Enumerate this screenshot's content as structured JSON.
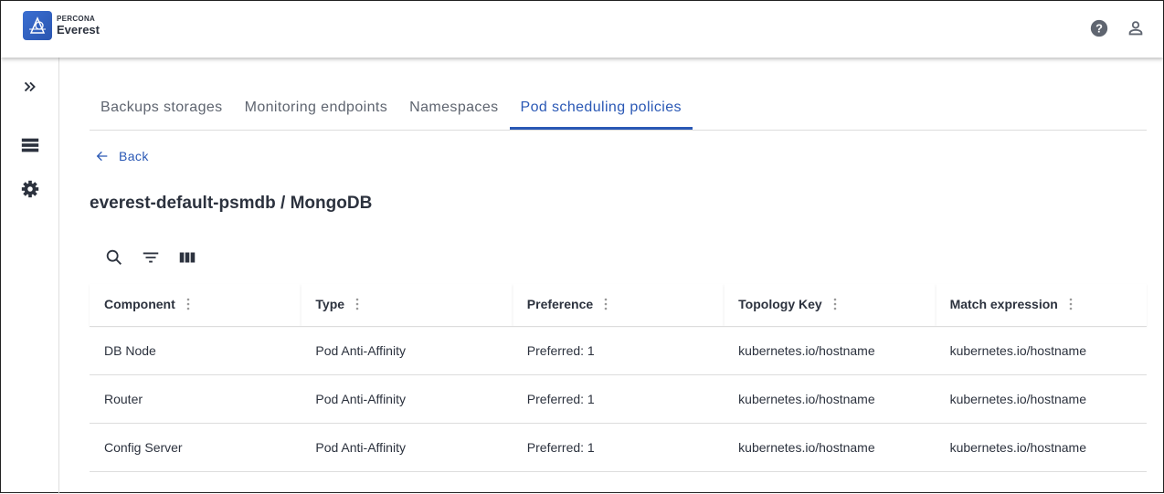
{
  "header": {
    "brand_top": "PERCONA",
    "brand_bottom": "Everest",
    "icons": [
      "help-icon",
      "account-icon"
    ]
  },
  "sidebar": {
    "icons": [
      "expand-icon",
      "databases-icon",
      "settings-icon"
    ]
  },
  "tabs": [
    {
      "label": "Backups storages"
    },
    {
      "label": "Monitoring endpoints"
    },
    {
      "label": "Namespaces"
    },
    {
      "label": "Pod scheduling policies",
      "active": true
    }
  ],
  "back_label": "Back",
  "page_title": "everest-default-psmdb / MongoDB",
  "toolbar": {
    "icons": [
      "search-icon",
      "filter-icon",
      "columns-icon"
    ]
  },
  "table": {
    "columns": [
      "Component",
      "Type",
      "Preference",
      "Topology Key",
      "Match expression"
    ],
    "rows": [
      [
        "DB Node",
        "Pod Anti-Affinity",
        "Preferred: 1",
        "kubernetes.io/hostname",
        "kubernetes.io/hostname"
      ],
      [
        "Router",
        "Pod Anti-Affinity",
        "Preferred: 1",
        "kubernetes.io/hostname",
        "kubernetes.io/hostname"
      ],
      [
        "Config Server",
        "Pod Anti-Affinity",
        "Preferred: 1",
        "kubernetes.io/hostname",
        "kubernetes.io/hostname"
      ]
    ]
  },
  "colors": {
    "accent": "#2a58b5",
    "text": "#2c323e"
  }
}
